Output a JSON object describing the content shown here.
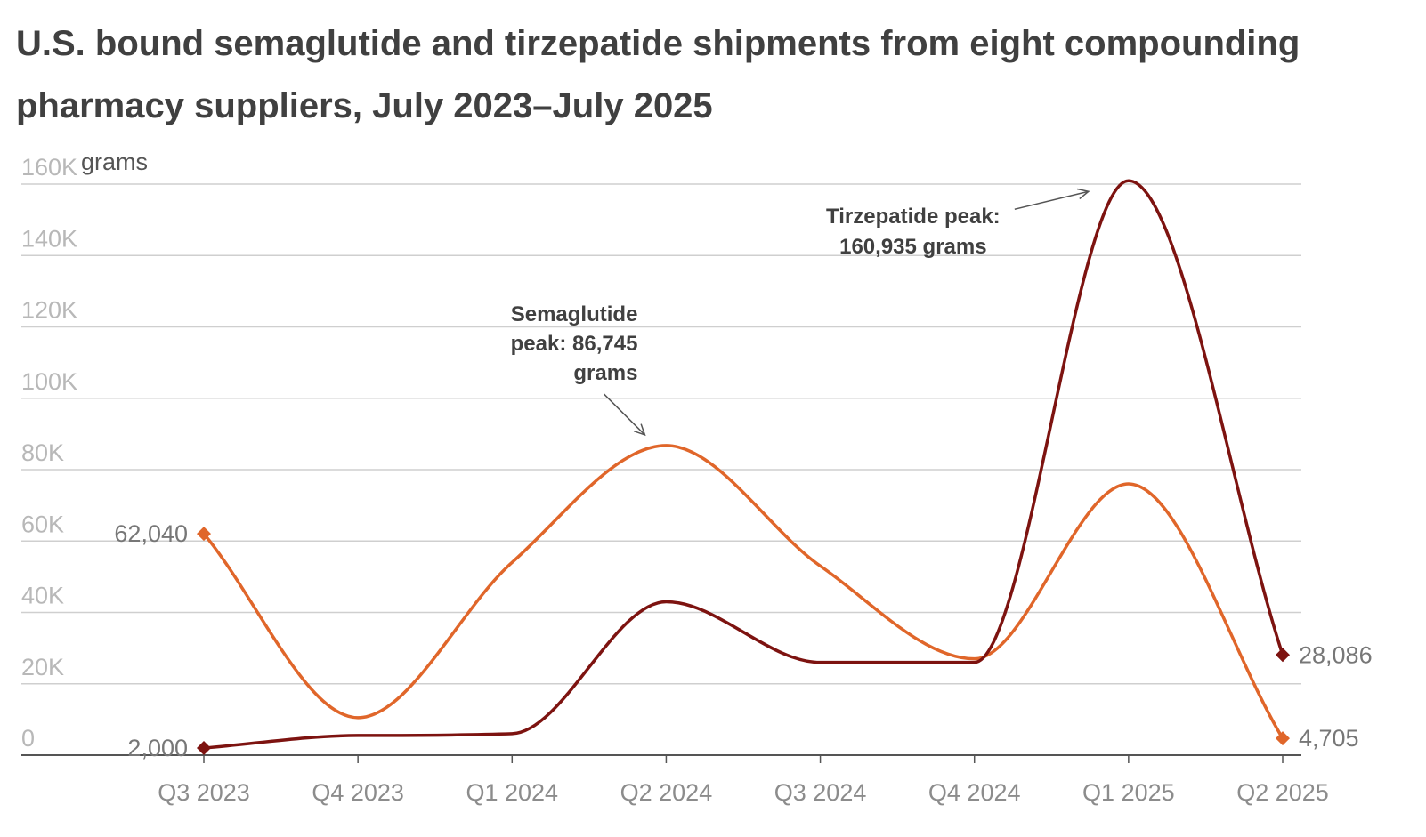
{
  "chart_data": {
    "type": "line",
    "title": "U.S. bound semaglutide and tirzepatide shipments from eight compounding pharmacy suppliers, July 2023–July 2025",
    "ylabel": "grams",
    "xlabel": "",
    "categories": [
      "Q3 2023",
      "Q4 2023",
      "Q1 2024",
      "Q2 2024",
      "Q3 2024",
      "Q4 2024",
      "Q1 2025",
      "Q2 2025"
    ],
    "ylim": [
      0,
      160000
    ],
    "yticks": [
      0,
      20000,
      40000,
      60000,
      80000,
      100000,
      120000,
      140000,
      160000
    ],
    "ytick_labels": [
      "0",
      "20K",
      "40K",
      "60K",
      "80K",
      "100K",
      "120K",
      "140K",
      "160K"
    ],
    "grid": true,
    "series": [
      {
        "key": "semaglutide",
        "color": "#e0662a",
        "values": [
          62040,
          10500,
          54000,
          86745,
          53000,
          27000,
          76000,
          4705
        ]
      },
      {
        "key": "tirzepatide",
        "color": "#7d1310",
        "values": [
          2000,
          5500,
          6000,
          43000,
          26000,
          26000,
          160935,
          28086
        ]
      }
    ],
    "value_labels": [
      {
        "series": 0,
        "index": 0,
        "text": "62,040",
        "side": "left"
      },
      {
        "series": 1,
        "index": 0,
        "text": "2,000",
        "side": "left"
      },
      {
        "series": 1,
        "index": 7,
        "text": "28,086",
        "side": "right"
      },
      {
        "series": 0,
        "index": 7,
        "text": "4,705",
        "side": "right"
      }
    ],
    "annotations": [
      {
        "series": 0,
        "index": 3,
        "lines": [
          "Semaglutide",
          "peak: 86,745",
          "grams"
        ]
      },
      {
        "series": 1,
        "index": 6,
        "lines": [
          "Tirzepatide peak:",
          "160,935 grams"
        ]
      }
    ]
  }
}
